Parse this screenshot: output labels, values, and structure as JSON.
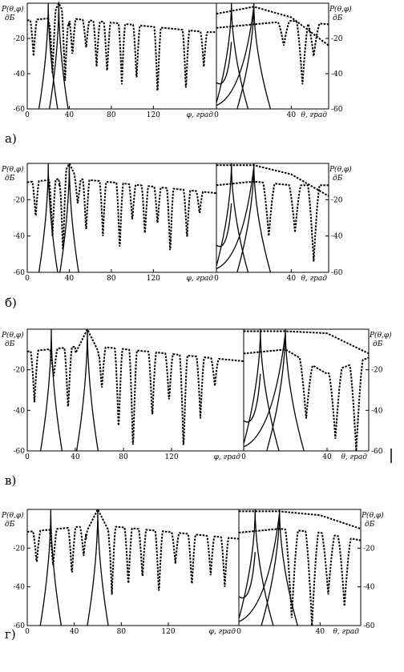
{
  "figure": {
    "panel_labels": [
      "а)",
      "б)",
      "в)",
      "г)"
    ],
    "ylabel_left_1": "P(θ,φ)",
    "ylabel_left_2": "дБ",
    "ylabel_right_1": "P(θ,φ)",
    "ylabel_right_2": "дБ",
    "xlabel_phi": "φ, град",
    "xlabel_theta": "θ, град",
    "colors": {
      "line": "#000000",
      "background": "#ffffff"
    }
  },
  "chart_data": [
    {
      "type": "line",
      "panel": "а)",
      "phi": {
        "xlabel": "φ, град",
        "ylabel": "P(θ,φ), дБ",
        "xlim": [
          0,
          180
        ],
        "ylim": [
          -60,
          0
        ],
        "xticks": [
          0,
          40,
          80,
          120
        ],
        "yticks": [
          -20,
          -40,
          -60
        ],
        "peaks_dashed": [
          30
        ],
        "peaks_solid": [
          20,
          30
        ],
        "nulls_dashed": [
          6,
          24,
          36,
          43,
          56,
          66,
          76,
          90,
          104,
          124,
          151,
          168
        ],
        "null_depths_dashed": [
          -30,
          -40,
          -44,
          -30,
          -26,
          -36,
          -40,
          -46,
          -44,
          -52,
          -50,
          -36
        ],
        "series": [
          {
            "style": "dashed"
          },
          {
            "style": "solid"
          }
        ]
      },
      "theta": {
        "xlabel": "θ, град",
        "ylabel": "P(θ,φ), дБ",
        "xlim": [
          0,
          60
        ],
        "ylim": [
          -60,
          0
        ],
        "xticks": [
          0,
          40
        ],
        "yticks": [
          -20,
          -40,
          -60
        ],
        "peaks_solid": [
          8,
          20
        ],
        "upper_dashed_x": [
          0,
          20,
          40,
          60
        ],
        "upper_dashed_y": [
          -6,
          -2,
          -8,
          -24
        ],
        "lower_dashed_x": [
          0,
          20,
          40,
          60
        ],
        "lower_dashed_y": [
          -14,
          -12,
          -10,
          -12
        ],
        "nulls_dashed": [
          36,
          46,
          52
        ],
        "null_depths_dashed": [
          -24,
          -46,
          -30
        ]
      }
    },
    {
      "type": "line",
      "panel": "б)",
      "phi": {
        "xlabel": "φ, град",
        "ylabel": "P(θ,φ), дБ",
        "xlim": [
          0,
          180
        ],
        "ylim": [
          -60,
          0
        ],
        "xticks": [
          0,
          40,
          80,
          120
        ],
        "yticks": [
          -20,
          -40,
          -60
        ],
        "peaks_dashed": [
          40
        ],
        "peaks_solid": [
          20,
          40
        ],
        "nulls_dashed": [
          8,
          24,
          34,
          48,
          56,
          72,
          88,
          100,
          112,
          124,
          136,
          152,
          164
        ],
        "null_depths_dashed": [
          -30,
          -40,
          -50,
          -22,
          -38,
          -40,
          -48,
          -32,
          -40,
          -34,
          -50,
          -42,
          -28
        ],
        "series": [
          {
            "style": "dashed"
          },
          {
            "style": "solid"
          }
        ]
      },
      "theta": {
        "xlabel": "θ, град",
        "ylabel": "P(θ,φ), дБ",
        "xlim": [
          0,
          60
        ],
        "ylim": [
          -60,
          0
        ],
        "xticks": [
          0,
          40
        ],
        "yticks": [
          -20,
          -40,
          -60
        ],
        "peaks_solid": [
          8,
          20
        ],
        "upper_dashed_x": [
          0,
          20,
          40,
          60
        ],
        "upper_dashed_y": [
          -1,
          -1,
          -6,
          -18
        ],
        "lower_dashed_x": [
          0,
          20,
          40,
          60
        ],
        "lower_dashed_y": [
          -12,
          -10,
          -12,
          -12
        ],
        "nulls_dashed": [
          28,
          42,
          52
        ],
        "null_depths_dashed": [
          -40,
          -38,
          -54
        ]
      }
    },
    {
      "type": "line",
      "panel": "в)",
      "phi": {
        "xlabel": "φ, град",
        "ylabel": "P(θ,φ), дБ",
        "xlim": [
          0,
          180
        ],
        "ylim": [
          -60,
          0
        ],
        "xticks": [
          0,
          40,
          80,
          120
        ],
        "yticks": [
          -20,
          -40,
          -60
        ],
        "peaks_dashed": [
          50
        ],
        "peaks_solid": [
          20,
          50
        ],
        "nulls_dashed": [
          6,
          22,
          34,
          62,
          76,
          88,
          104,
          118,
          130,
          144,
          156
        ],
        "null_depths_dashed": [
          -36,
          -24,
          -40,
          -30,
          -50,
          -60,
          -44,
          -36,
          -60,
          -44,
          -28
        ],
        "series": [
          {
            "style": "dashed"
          },
          {
            "style": "solid"
          }
        ]
      },
      "theta": {
        "xlabel": "θ, град",
        "ylabel": "P(θ,φ), дБ",
        "xlim": [
          0,
          60
        ],
        "ylim": [
          -60,
          0
        ],
        "xticks": [
          0,
          40
        ],
        "yticks": [
          -20,
          -40,
          -60
        ],
        "peaks_solid": [
          8,
          20
        ],
        "upper_dashed_x": [
          0,
          20,
          40,
          60
        ],
        "upper_dashed_y": [
          -1,
          -1,
          -2,
          -12
        ],
        "lower_dashed_x": [
          0,
          20,
          40,
          60
        ],
        "lower_dashed_y": [
          -12,
          -10,
          -22,
          -14
        ],
        "nulls_dashed": [
          30,
          44,
          54
        ],
        "null_depths_dashed": [
          -44,
          -54,
          -60
        ]
      }
    },
    {
      "type": "line",
      "panel": "г)",
      "phi": {
        "xlabel": "φ, град",
        "ylabel": "P(θ,φ), дБ",
        "xlim": [
          0,
          180
        ],
        "ylim": [
          -60,
          0
        ],
        "xticks": [
          0,
          40,
          80,
          120
        ],
        "yticks": [
          -20,
          -40,
          -60
        ],
        "peaks_dashed": [
          60
        ],
        "peaks_solid": [
          20,
          60
        ],
        "nulls_dashed": [
          8,
          22,
          38,
          48,
          72,
          86,
          98,
          112,
          126,
          140,
          156,
          168
        ],
        "null_depths_dashed": [
          -28,
          -30,
          -34,
          -24,
          -44,
          -40,
          -36,
          -44,
          -28,
          -40,
          -34,
          -40
        ],
        "series": [
          {
            "style": "dashed"
          },
          {
            "style": "solid"
          }
        ]
      },
      "theta": {
        "xlabel": "θ, град",
        "ylabel": "P(θ,φ), дБ",
        "xlim": [
          0,
          60
        ],
        "ylim": [
          -60,
          0
        ],
        "xticks": [
          0,
          40
        ],
        "yticks": [
          -20,
          -40,
          -60
        ],
        "peaks_solid": [
          8,
          20
        ],
        "upper_dashed_x": [
          0,
          20,
          40,
          60
        ],
        "upper_dashed_y": [
          -1,
          -1,
          -3,
          -10
        ],
        "lower_dashed_x": [
          0,
          20,
          40,
          60
        ],
        "lower_dashed_y": [
          -12,
          -10,
          -12,
          -16
        ],
        "nulls_dashed": [
          26,
          36,
          44,
          52
        ],
        "null_depths_dashed": [
          -56,
          -60,
          -44,
          -50
        ]
      }
    }
  ]
}
